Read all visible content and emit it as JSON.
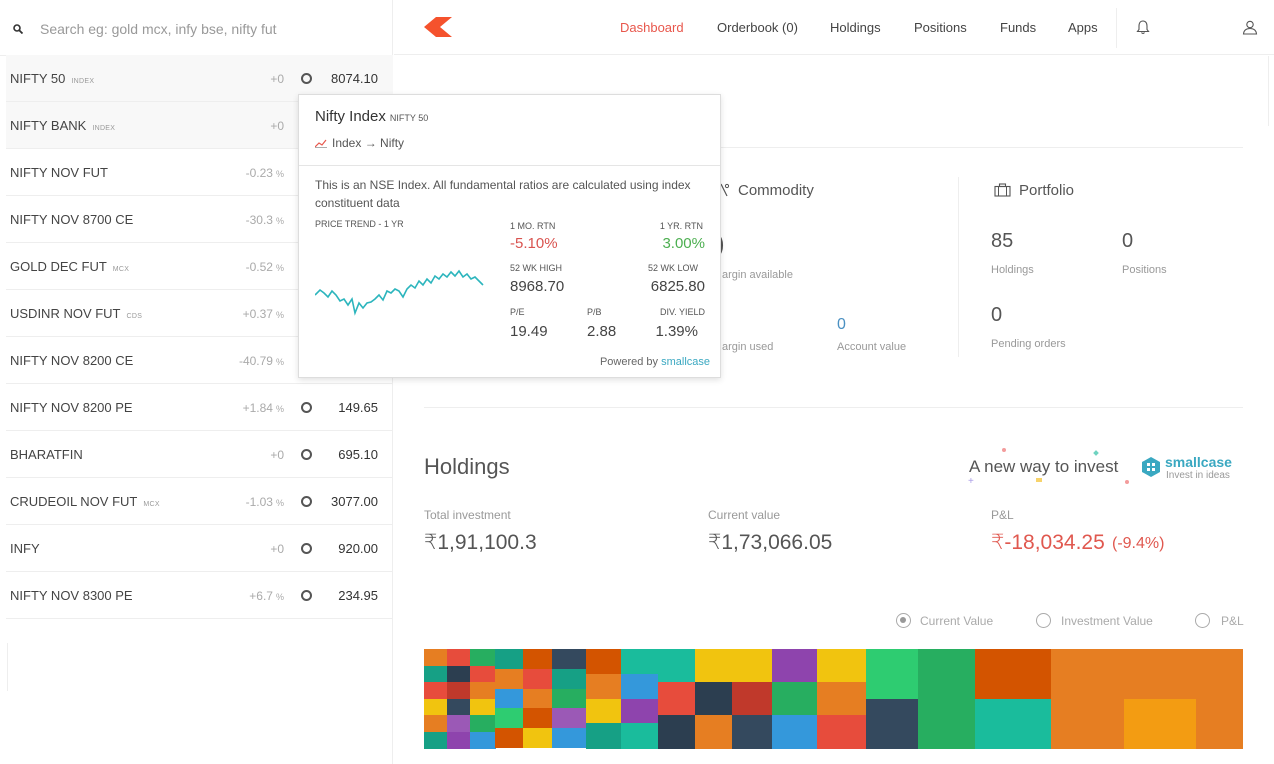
{
  "search": {
    "placeholder": "Search eg: gold mcx, infy bse, nifty fut"
  },
  "watchlist": [
    {
      "name": "NIFTY 50",
      "exchange": "INDEX",
      "change": "+0",
      "pct": "",
      "ltp": "8074.10",
      "highlight": true
    },
    {
      "name": "NIFTY BANK",
      "exchange": "INDEX",
      "change": "+0",
      "pct": "",
      "ltp": "",
      "highlight": true
    },
    {
      "name": "NIFTY NOV FUT",
      "exchange": "",
      "change": "-0.23",
      "pct": "%",
      "ltp": ""
    },
    {
      "name": "NIFTY NOV 8700 CE",
      "exchange": "",
      "change": "-30.3",
      "pct": "%",
      "ltp": ""
    },
    {
      "name": "GOLD DEC FUT",
      "exchange": "MCX",
      "change": "-0.52",
      "pct": "%",
      "ltp": ""
    },
    {
      "name": "USDINR NOV FUT",
      "exchange": "CDS",
      "change": "+0.37",
      "pct": "%",
      "ltp": ""
    },
    {
      "name": "NIFTY NOV 8200 CE",
      "exchange": "",
      "change": "-40.79",
      "pct": "%",
      "ltp": ""
    },
    {
      "name": "NIFTY NOV 8200 PE",
      "exchange": "",
      "change": "+1.84",
      "pct": "%",
      "ltp": "149.65"
    },
    {
      "name": "BHARATFIN",
      "exchange": "",
      "change": "+0",
      "pct": "",
      "ltp": "695.10"
    },
    {
      "name": "CRUDEOIL NOV FUT",
      "exchange": "MCX",
      "change": "-1.03",
      "pct": "%",
      "ltp": "3077.00"
    },
    {
      "name": "INFY",
      "exchange": "",
      "change": "+0",
      "pct": "",
      "ltp": "920.00"
    },
    {
      "name": "NIFTY NOV 8300 PE",
      "exchange": "",
      "change": "+6.7",
      "pct": "%",
      "ltp": "234.95"
    }
  ],
  "nav": {
    "dashboard": "Dashboard",
    "orderbook": "Orderbook (0)",
    "holdings": "Holdings",
    "positions": "Positions",
    "funds": "Funds",
    "apps": "Apps"
  },
  "colors": {
    "accent": "#e8574c",
    "green": "#4caf50",
    "red": "#d9534f",
    "link": "#3aa8c1"
  },
  "commodity": {
    "title": "Commodity",
    "margin_available_label": "argin available",
    "margin_used_label": "argin used",
    "account_value": "0",
    "account_value_label": "Account value"
  },
  "portfolio": {
    "title": "Portfolio",
    "holdings": "85",
    "holdings_label": "Holdings",
    "positions": "0",
    "positions_label": "Positions",
    "pending": "0",
    "pending_label": "Pending orders"
  },
  "holdings": {
    "title": "Holdings",
    "promo": "A new way to invest",
    "promo_brand": "smallcase",
    "promo_tag": "Invest in ideas",
    "total_investment_label": "Total investment",
    "total_investment": "₹1,91,100.3",
    "current_value_label": "Current value",
    "current_value": "₹1,73,066.05",
    "pnl_label": "P&L",
    "pnl": "₹-18,034.25",
    "pnl_pct": "(-9.4%)",
    "radios": [
      "Current Value",
      "Investment Value",
      "P&L"
    ]
  },
  "popup": {
    "title": "Nifty Index",
    "title_sub": "NIFTY 50",
    "breadcrumb": "Index → Nifty",
    "desc": "This is an NSE Index. All fundamental ratios are calculated using index constituent data",
    "trend_label": "PRICE TREND - 1 YR",
    "mo_rtn_label": "1 MO. RTN",
    "mo_rtn": "-5.10%",
    "yr_rtn_label": "1 YR. RTN",
    "yr_rtn": "3.00%",
    "wk_high_label": "52 WK HIGH",
    "wk_high": "8968.70",
    "wk_low_label": "52 WK LOW",
    "wk_low": "6825.80",
    "pe_label": "P/E",
    "pe": "19.49",
    "pb_label": "P/B",
    "pb": "2.88",
    "div_label": "DIV. YIELD",
    "div": "1.39%",
    "powered_by": "Powered by",
    "powered_brand": "smallcase"
  },
  "heatmap_colors": [
    "#2ecc71",
    "#e74c3c",
    "#3498db",
    "#f1c40f",
    "#9b59b6",
    "#1abc9c",
    "#34495e",
    "#e67e22",
    "#16a085",
    "#c0392b",
    "#27ae60",
    "#2980b9",
    "#8e44ad",
    "#f39c12",
    "#2c3e50",
    "#d35400"
  ]
}
